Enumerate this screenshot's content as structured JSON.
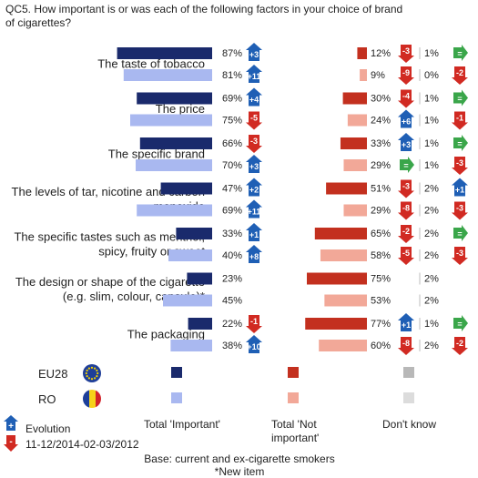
{
  "question": "QC5. How important is or was each of the following factors in your choice of brand of cigarettes?",
  "chart_data": {
    "type": "bar",
    "title": "QC5. How important is or was each of the following factors in your choice of brand of cigarettes?",
    "categories": [
      [
        "The taste of tobacco"
      ],
      [
        "The price"
      ],
      [
        "The specific brand"
      ],
      [
        "The levels of tar, nicotine and carbon",
        "monoxide"
      ],
      [
        "The specific tastes such as menthol,",
        "spicy, fruity or sweet"
      ],
      [
        "The design or shape of the cigarette",
        "(e.g. slim, colour, capsule)*"
      ],
      [
        "The packaging"
      ]
    ],
    "groups": [
      "EU28",
      "RO"
    ],
    "series": [
      {
        "name": "Total 'Important'",
        "values": {
          "EU28": [
            87,
            69,
            66,
            47,
            33,
            23,
            22
          ],
          "RO": [
            81,
            75,
            70,
            69,
            40,
            45,
            38
          ]
        }
      },
      {
        "name": "Total 'Not important'",
        "values": {
          "EU28": [
            12,
            30,
            33,
            51,
            65,
            75,
            77
          ],
          "RO": [
            9,
            24,
            29,
            29,
            58,
            53,
            60
          ]
        }
      },
      {
        "name": "Don't know",
        "values": {
          "EU28": [
            1,
            1,
            1,
            2,
            2,
            2,
            1
          ],
          "RO": [
            0,
            1,
            1,
            2,
            2,
            2,
            2
          ]
        }
      }
    ],
    "evolution": {
      "important": {
        "EU28": [
          "+3",
          "+4",
          "-3",
          "+2",
          "+1",
          null,
          "-1"
        ],
        "RO": [
          "+11",
          "-5",
          "+3",
          "+11",
          "+8",
          null,
          "+10"
        ]
      },
      "not_important": {
        "EU28": [
          "-3",
          "-4",
          "+3",
          "-3",
          "-2",
          null,
          "+1"
        ],
        "RO": [
          "-9",
          "+6",
          "=",
          "-8",
          "-5",
          null,
          "-8"
        ]
      },
      "dont_know": {
        "EU28": [
          "=",
          "=",
          "=",
          "+1",
          "=",
          null,
          "="
        ],
        "RO": [
          "-2",
          "-1",
          "-3",
          "-3",
          "-3",
          null,
          "-2"
        ]
      }
    },
    "colors": {
      "eu_important": "#1a2a6c",
      "ro_important": "#a9b8f0",
      "eu_not_important": "#c3301f",
      "ro_not_important": "#f2a898",
      "eu_dont_know": "#b8b8b8",
      "ro_dont_know": "#dcdcdc",
      "up_arrow": "#1f5fb5",
      "down_arrow": "#d12a22",
      "equal_arrow": "#3aa64a"
    }
  },
  "legend": {
    "eu28": "EU28",
    "ro": "RO",
    "important": "Total 'Important'",
    "not_important_line1": "Total 'Not",
    "not_important_line2": "important'",
    "dont_know": "Don't know",
    "evolution": "Evolution",
    "period": "11-12/2014-02-03/2012",
    "base": "Base: current and ex-cigarette smokers",
    "new_item": "*New item",
    "plus_symbol": "+",
    "minus_symbol": "-"
  }
}
